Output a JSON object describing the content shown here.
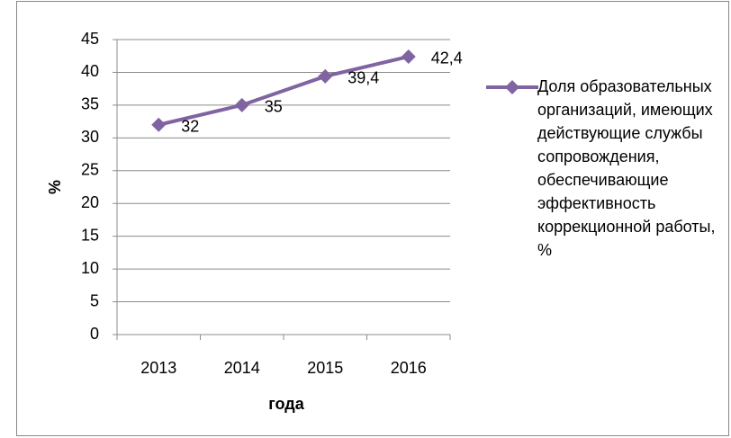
{
  "chart_data": {
    "type": "line",
    "categories": [
      "2013",
      "2014",
      "2015",
      "2016"
    ],
    "series": [
      {
        "name": "Доля образовательных организаций, имеющих действующие службы сопровождения, обеспечивающие эффективность коррекционной работы, %",
        "color": "#8064a2",
        "values": [
          32,
          35,
          39.4,
          42.4
        ],
        "value_labels": [
          "32",
          "35",
          "39,4",
          "42,4"
        ]
      }
    ],
    "xlabel": "года",
    "ylabel": "%",
    "ylim": [
      0,
      45
    ],
    "yticks": [
      0,
      5,
      10,
      15,
      20,
      25,
      30,
      35,
      40,
      45
    ],
    "grid": true,
    "legend": "right"
  }
}
